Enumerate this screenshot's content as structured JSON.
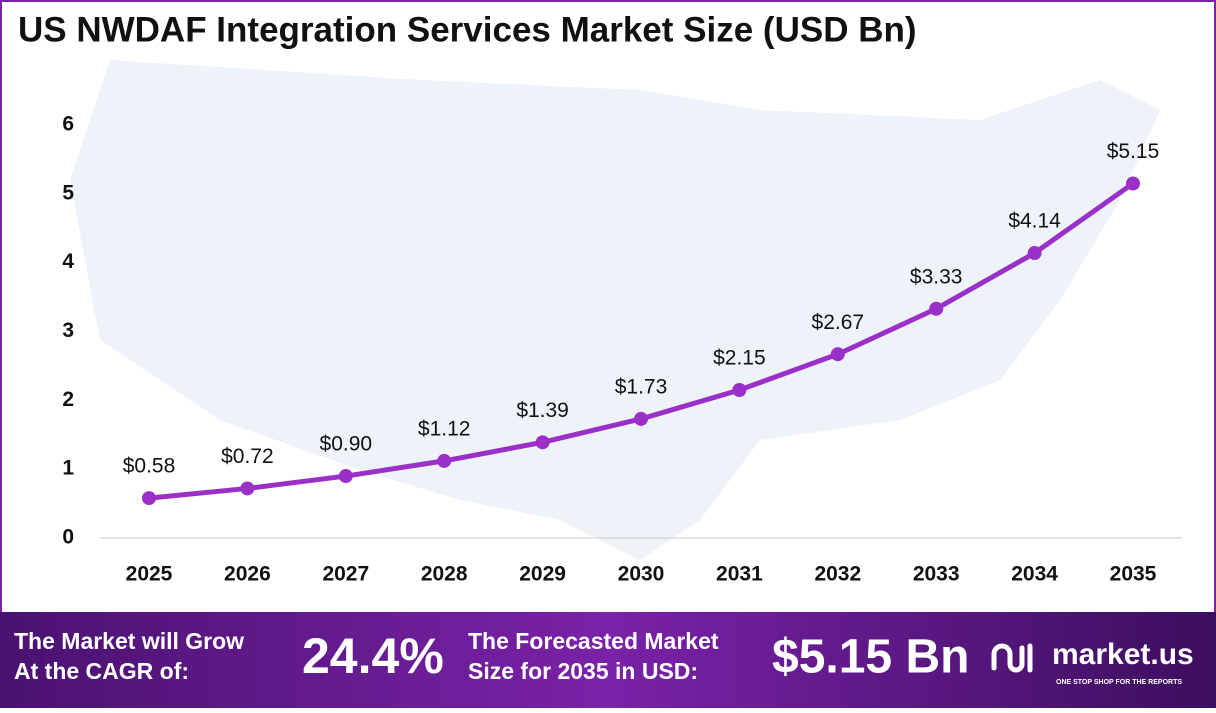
{
  "chart_data": {
    "type": "line",
    "title": "US NWDAF Integration Services Market Size (USD Bn)",
    "categories": [
      "2025",
      "2026",
      "2027",
      "2028",
      "2029",
      "2030",
      "2031",
      "2032",
      "2033",
      "2034",
      "2035"
    ],
    "series": [
      {
        "name": "Market Size",
        "color": "#9b30c8",
        "values": [
          0.58,
          0.72,
          0.9,
          1.12,
          1.39,
          1.73,
          2.15,
          2.67,
          3.33,
          4.14,
          5.15
        ],
        "value_labels": [
          "$0.58",
          "$0.72",
          "$0.90",
          "$1.12",
          "$1.39",
          "$1.73",
          "$2.15",
          "$2.67",
          "$3.33",
          "$4.14",
          "$5.15"
        ]
      }
    ],
    "ylim": [
      0,
      6
    ],
    "yticks": [
      0,
      1,
      2,
      3,
      4,
      5,
      6
    ],
    "grid": false
  },
  "footer": {
    "cagr_text": [
      "The Market will Grow",
      "At the CAGR of:"
    ],
    "cagr_value": "24.4%",
    "forecast_text": [
      "The Forecasted Market",
      "Size for 2035 in USD:"
    ],
    "forecast_value": "$5.15 Bn",
    "brand": "market.us",
    "tagline": "ONE STOP SHOP FOR THE REPORTS"
  }
}
